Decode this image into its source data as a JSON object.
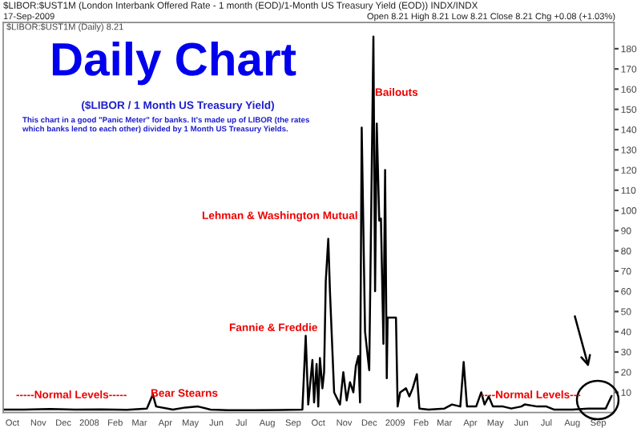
{
  "chart_data": {
    "type": "line",
    "annotations": [
      "$LIBOR:$UST1M (London Interbank Offered Rate - 1 month (EOD)/1-Month US Treasury Yield (EOD)) INDX/INDX",
      "17-Sep-2009",
      "Open 8.21 High 8.21 Low 8.21 Close 8.21 Chg +0.08 (+1.03%)",
      "$LIBOR:$UST1M (Daily) 8.21",
      "Daily Chart",
      "($LIBOR / 1 Month US Treasury Yield)",
      "This chart in a good \"Panic Meter\" for banks. It's made up of LIBOR (the rates\nwhich banks lend to each other) divided by 1 Month US Treasury Yields.",
      "Bailouts",
      "Lehman & Washington Mutual",
      "Fannie & Freddie",
      "Bear Stearns",
      "-----Normal Levels-----",
      "----Normal Levels---"
    ],
    "x": [
      "2007-09-20",
      "2007-10-15",
      "2007-11-15",
      "2007-12-15",
      "2008-01-15",
      "2008-02-15",
      "2008-03-10",
      "2008-03-17",
      "2008-03-21",
      "2008-04-10",
      "2008-04-25",
      "2008-05-10",
      "2008-05-25",
      "2008-06-15",
      "2008-07-15",
      "2008-08-15",
      "2008-09-12",
      "2008-09-16",
      "2008-09-19",
      "2008-09-24",
      "2008-09-26",
      "2008-09-29",
      "2008-10-01",
      "2008-10-03",
      "2008-10-06",
      "2008-10-08",
      "2008-10-10",
      "2008-10-13",
      "2008-10-15",
      "2008-10-20",
      "2008-10-27",
      "2008-10-31",
      "2008-11-04",
      "2008-11-08",
      "2008-11-12",
      "2008-11-15",
      "2008-11-18",
      "2008-11-20",
      "2008-11-22",
      "2008-11-26",
      "2008-12-01",
      "2008-12-06",
      "2008-12-08",
      "2008-12-10",
      "2008-12-13",
      "2008-12-15",
      "2008-12-18",
      "2008-12-20",
      "2008-12-22",
      "2008-12-23",
      "2009-01-02",
      "2009-01-04",
      "2009-01-07",
      "2009-01-14",
      "2009-01-18",
      "2009-01-22",
      "2009-01-27",
      "2009-01-30",
      "2009-02-10",
      "2009-03-01",
      "2009-03-10",
      "2009-03-20",
      "2009-03-24",
      "2009-03-28",
      "2009-04-08",
      "2009-04-14",
      "2009-04-18",
      "2009-04-23",
      "2009-04-28",
      "2009-05-10",
      "2009-05-20",
      "2009-06-01",
      "2009-06-05",
      "2009-06-20",
      "2009-07-01",
      "2009-07-10",
      "2009-08-01",
      "2009-08-20",
      "2009-09-05",
      "2009-09-10",
      "2009-09-17"
    ],
    "values": [
      1.5,
      1.5,
      1.8,
      1.5,
      1.6,
      1.4,
      2,
      9,
      3,
      1.5,
      2.5,
      3,
      1.5,
      1.2,
      1.2,
      1.3,
      1.5,
      38,
      4,
      26,
      5,
      24,
      3,
      27,
      12,
      20,
      65,
      86,
      60,
      10,
      4,
      20,
      6,
      15,
      10,
      23,
      28,
      5,
      141,
      40,
      21,
      186,
      60,
      143,
      95,
      96,
      34,
      120,
      17,
      47,
      47,
      3,
      10,
      12,
      8,
      12,
      19,
      2,
      1.5,
      2,
      4,
      3,
      25,
      3,
      3,
      10,
      4,
      8,
      3,
      3,
      2,
      3,
      4,
      3,
      3,
      1.5,
      1.5,
      2,
      2,
      2,
      8.2
    ],
    "color": "#000000",
    "xlim": [
      "2007-09-20",
      "2009-09-20"
    ],
    "xticks": [
      {
        "value": "2007-10-01",
        "label": "Oct"
      },
      {
        "value": "2007-11-01",
        "label": "Nov"
      },
      {
        "value": "2007-12-01",
        "label": "Dec"
      },
      {
        "value": "2008-01-01",
        "label": "2008"
      },
      {
        "value": "2008-02-01",
        "label": "Feb"
      },
      {
        "value": "2008-03-01",
        "label": "Mar"
      },
      {
        "value": "2008-04-01",
        "label": "Apr"
      },
      {
        "value": "2008-05-01",
        "label": "May"
      },
      {
        "value": "2008-06-01",
        "label": "Jun"
      },
      {
        "value": "2008-07-01",
        "label": "Jul"
      },
      {
        "value": "2008-08-01",
        "label": "Aug"
      },
      {
        "value": "2008-09-01",
        "label": "Sep"
      },
      {
        "value": "2008-10-01",
        "label": "Oct"
      },
      {
        "value": "2008-11-01",
        "label": "Nov"
      },
      {
        "value": "2008-12-01",
        "label": "Dec"
      },
      {
        "value": "2009-01-01",
        "label": "2009"
      },
      {
        "value": "2009-02-01",
        "label": "Feb"
      },
      {
        "value": "2009-03-01",
        "label": "Mar"
      },
      {
        "value": "2009-04-01",
        "label": "Apr"
      },
      {
        "value": "2009-05-01",
        "label": "May"
      },
      {
        "value": "2009-06-01",
        "label": "Jun"
      },
      {
        "value": "2009-07-01",
        "label": "Jul"
      },
      {
        "value": "2009-08-01",
        "label": "Aug"
      },
      {
        "value": "2009-09-01",
        "label": "Sep"
      }
    ],
    "ylim": [
      0,
      193
    ],
    "yticks": [
      10,
      20,
      30,
      40,
      50,
      60,
      70,
      80,
      90,
      100,
      110,
      120,
      130,
      140,
      150,
      160,
      170,
      180
    ],
    "grid": false,
    "legend": false,
    "line_style": "solid",
    "marker": "none"
  }
}
